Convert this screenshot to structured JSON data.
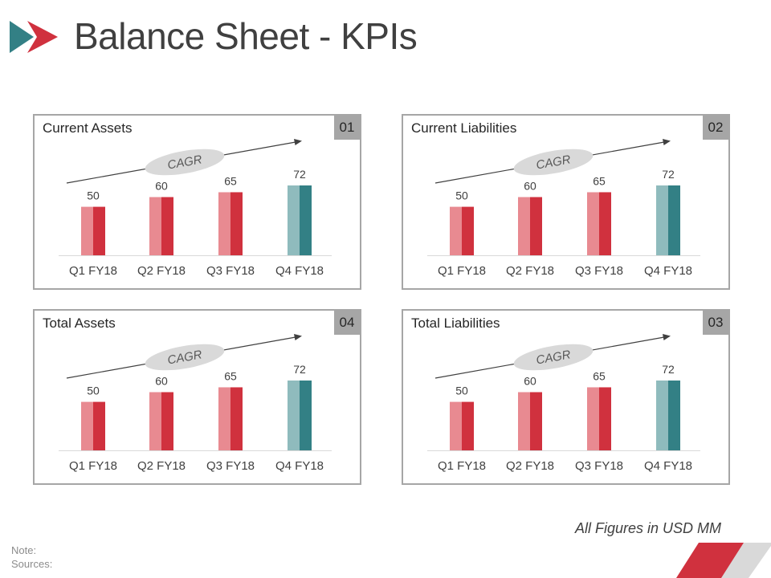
{
  "page": {
    "title": "Balance Sheet - KPIs",
    "footnote": "All Figures in USD MM",
    "note_label": "Note:",
    "sources_label": "Sources:"
  },
  "colors": {
    "primary": "#d0313e",
    "primary_light": "#e88a91",
    "accent": "#338085",
    "accent_light": "#8fbbbd",
    "border": "#a6a6a6",
    "cagr_ellipse": "#d9d9d9",
    "text": "#404040"
  },
  "panels": [
    {
      "title": "Current Assets",
      "number": "01"
    },
    {
      "title": "Current Liabilities",
      "number": "02"
    },
    {
      "title": "Total Assets",
      "number": "04"
    },
    {
      "title": "Total Liabilities",
      "number": "03"
    }
  ],
  "chart_data": [
    {
      "type": "bar",
      "title": "Current Assets",
      "categories": [
        "Q1 FY18",
        "Q2 FY18",
        "Q3 FY18",
        "Q4 FY18"
      ],
      "values": [
        50,
        60,
        65,
        72
      ],
      "data_labels": [
        "50",
        "60",
        "65",
        "72"
      ],
      "annotation": "CAGR",
      "ylim": [
        0,
        80
      ],
      "highlight_index": 3
    },
    {
      "type": "bar",
      "title": "Current Liabilities",
      "categories": [
        "Q1 FY18",
        "Q2 FY18",
        "Q3 FY18",
        "Q4 FY18"
      ],
      "values": [
        50,
        60,
        65,
        72
      ],
      "data_labels": [
        "50",
        "60",
        "65",
        "72"
      ],
      "annotation": "CAGR",
      "ylim": [
        0,
        80
      ],
      "highlight_index": 3
    },
    {
      "type": "bar",
      "title": "Total Assets",
      "categories": [
        "Q1 FY18",
        "Q2 FY18",
        "Q3 FY18",
        "Q4 FY18"
      ],
      "values": [
        50,
        60,
        65,
        72
      ],
      "data_labels": [
        "50",
        "60",
        "65",
        "72"
      ],
      "annotation": "CAGR",
      "ylim": [
        0,
        80
      ],
      "highlight_index": 3
    },
    {
      "type": "bar",
      "title": "Total Liabilities",
      "categories": [
        "Q1 FY18",
        "Q2 FY18",
        "Q3 FY18",
        "Q4 FY18"
      ],
      "values": [
        50,
        60,
        65,
        72
      ],
      "data_labels": [
        "50",
        "60",
        "65",
        "72"
      ],
      "annotation": "CAGR",
      "ylim": [
        0,
        80
      ],
      "highlight_index": 3
    }
  ]
}
